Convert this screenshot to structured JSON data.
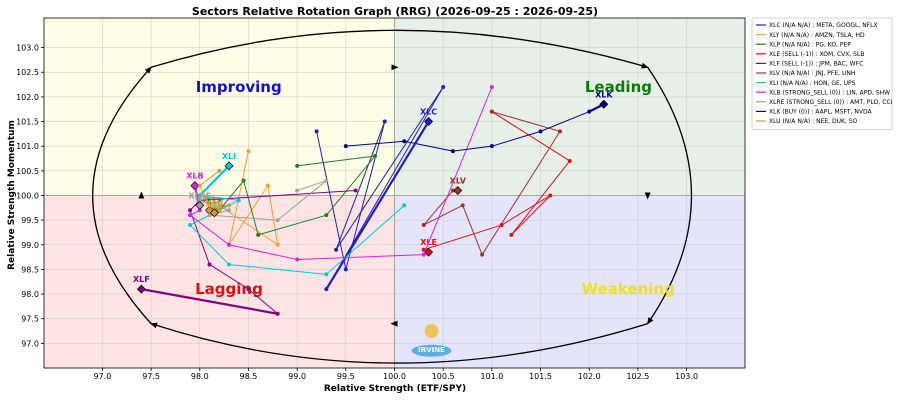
{
  "chart_data": {
    "type": "scatter",
    "title": "Sectors Relative Rotation Graph (RRG) (2026-09-25 : 2026-09-25)",
    "xlabel": "Relative Strength (ETF/SPY)",
    "ylabel": "Relative Strength Momentum",
    "xlim": [
      96.4,
      103.6
    ],
    "ylim": [
      96.5,
      103.6
    ],
    "x_ticks": [
      "97.0",
      "97.5",
      "98.0",
      "98.5",
      "99.0",
      "99.5",
      "100.0",
      "100.5",
      "101.0",
      "101.5",
      "102.0",
      "102.5",
      "103.0"
    ],
    "y_ticks": [
      "97.0",
      "97.5",
      "98.0",
      "98.5",
      "99.0",
      "99.5",
      "100.0",
      "100.5",
      "101.0",
      "101.5",
      "102.0",
      "102.5",
      "103.0"
    ],
    "grid": true,
    "legend_position": "right",
    "quadrants": [
      {
        "name": "Improving",
        "color": "#1010d0",
        "bg": "#fffde6",
        "x": 98.4,
        "y": 102.1
      },
      {
        "name": "Leading",
        "color": "#0a7a0a",
        "bg": "#e6f0e6",
        "x": 102.3,
        "y": 102.1
      },
      {
        "name": "Lagging",
        "color": "#e01010",
        "bg": "#ffe4e4",
        "x": 98.3,
        "y": 98.0
      },
      {
        "name": "Weakening",
        "color": "#f0e020",
        "bg": "#e4e4fb",
        "x": 102.4,
        "y": 98.0
      }
    ],
    "series": [
      {
        "name": "XLC (N/A N/A) : META, GOOGL, NFLX",
        "label": "XLC",
        "color": "#2020c0",
        "points": [
          [
            99.2,
            101.3
          ],
          [
            99.5,
            98.5
          ],
          [
            99.9,
            101.5
          ],
          [
            99.4,
            98.9
          ],
          [
            100.5,
            102.2
          ],
          [
            99.3,
            98.1
          ],
          [
            100.35,
            101.5
          ]
        ]
      },
      {
        "name": "XLY (N/A N/A) : AMZN, TSLA, HD",
        "label": "XLY",
        "color": "#f0a030",
        "points": [
          [
            98.5,
            100.9
          ],
          [
            98.3,
            99.0
          ],
          [
            98.7,
            100.2
          ],
          [
            98.8,
            99.0
          ],
          [
            98.2,
            99.8
          ],
          [
            98.3,
            99.8
          ],
          [
            98.1,
            99.7
          ]
        ]
      },
      {
        "name": "XLP (N/A N/A) : PG, KO, PEP",
        "label": "XLP",
        "color": "#208020",
        "points": [
          [
            99.0,
            100.6
          ],
          [
            99.8,
            100.8
          ],
          [
            99.3,
            99.6
          ],
          [
            98.6,
            99.2
          ],
          [
            98.45,
            100.3
          ],
          [
            98.2,
            99.7
          ],
          [
            98.15,
            99.7
          ]
        ]
      },
      {
        "name": "XLE (SELL (-1)) : XOM, CVX, SLB",
        "label": "XLE",
        "color": "#e01010",
        "points": [
          [
            101.0,
            101.7
          ],
          [
            101.8,
            100.7
          ],
          [
            101.2,
            99.2
          ],
          [
            101.6,
            100.0
          ],
          [
            101.1,
            99.4
          ],
          [
            100.3,
            98.9
          ],
          [
            100.35,
            98.85
          ]
        ]
      },
      {
        "name": "XLF (SELL (-1)) : JPM, BAC, WFC",
        "label": "XLF",
        "color": "#800080",
        "points": [
          [
            99.6,
            100.1
          ],
          [
            98.0,
            99.9
          ],
          [
            97.9,
            99.7
          ],
          [
            98.1,
            98.6
          ],
          [
            98.5,
            98.1
          ],
          [
            98.8,
            97.6
          ],
          [
            97.4,
            98.1
          ]
        ]
      },
      {
        "name": "XLV (N/A N/A) : JNJ, PFE, UNH",
        "label": "XLV",
        "color": "#a03030",
        "points": [
          [
            101.0,
            101.7
          ],
          [
            101.7,
            101.3
          ],
          [
            100.9,
            98.8
          ],
          [
            100.7,
            99.8
          ],
          [
            100.3,
            99.4
          ],
          [
            100.6,
            100.1
          ],
          [
            100.65,
            100.1
          ]
        ]
      },
      {
        "name": "XLI (N/A N/A) : HON, GE, UPS",
        "label": "XLI",
        "color": "#00c8e0",
        "points": [
          [
            100.1,
            99.8
          ],
          [
            99.3,
            98.4
          ],
          [
            98.3,
            98.6
          ],
          [
            97.9,
            99.4
          ],
          [
            98.4,
            99.9
          ],
          [
            98.0,
            100.0
          ],
          [
            98.3,
            100.6
          ]
        ]
      },
      {
        "name": "XLB (STRONG_SELL (0)) : LIN, APD, SHW",
        "label": "XLB",
        "color": "#e020e0",
        "points": [
          [
            101.0,
            102.2
          ],
          [
            100.3,
            98.8
          ],
          [
            99.0,
            98.7
          ],
          [
            98.3,
            99.0
          ],
          [
            97.9,
            99.6
          ],
          [
            98.0,
            99.7
          ],
          [
            97.95,
            100.2
          ]
        ]
      },
      {
        "name": "XLRE (STRONG_SELL (0)) : AMT, PLD, CCI",
        "label": "XLRE",
        "color": "#a0a0a0",
        "points": [
          [
            99.0,
            100.1
          ],
          [
            99.3,
            100.3
          ],
          [
            98.8,
            99.5
          ],
          [
            98.1,
            99.6
          ],
          [
            98.3,
            99.7
          ],
          [
            98.0,
            99.9
          ],
          [
            98.0,
            99.8
          ]
        ]
      },
      {
        "name": "XLK (BUY (0)) : AAPL, MSFT, NVDA",
        "label": "XLK",
        "color": "#000080",
        "points": [
          [
            99.5,
            101.0
          ],
          [
            100.1,
            101.1
          ],
          [
            100.6,
            100.9
          ],
          [
            101.0,
            101.0
          ],
          [
            101.5,
            101.3
          ],
          [
            102.0,
            101.7
          ],
          [
            102.15,
            101.85
          ]
        ]
      },
      {
        "name": "XLU (N/A N/A) : NEE, DUK, SO",
        "label": "XLU",
        "color": "#d0a030",
        "points": [
          [
            98.2,
            100.5
          ],
          [
            98.0,
            100.2
          ],
          [
            98.1,
            99.8
          ],
          [
            98.2,
            99.7
          ],
          [
            98.15,
            99.75
          ],
          [
            98.1,
            99.7
          ],
          [
            98.15,
            99.65
          ]
        ]
      }
    ]
  },
  "watermark": {
    "text": "IRVINE"
  }
}
